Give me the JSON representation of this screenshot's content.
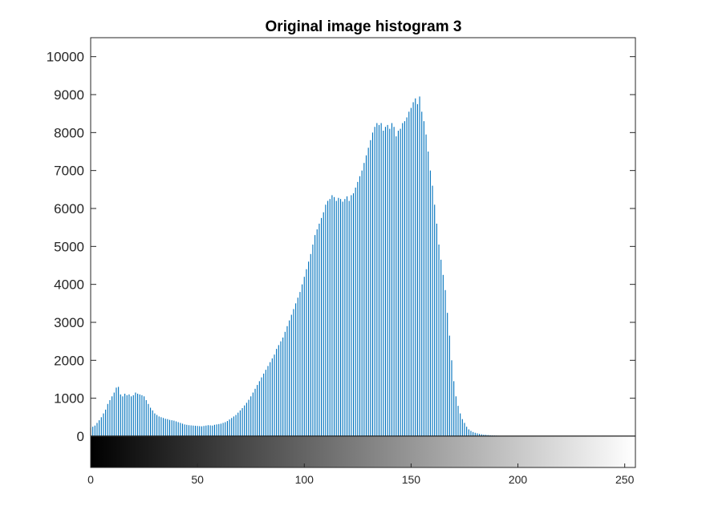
{
  "chart_data": {
    "type": "bar",
    "title": "Original image histogram 3",
    "xlabel": "",
    "ylabel": "",
    "xlim": [
      0,
      255
    ],
    "ylim": [
      0,
      10500
    ],
    "yticks": [
      0,
      1000,
      2000,
      3000,
      4000,
      5000,
      6000,
      7000,
      8000,
      9000,
      10000
    ],
    "xticks": [
      0,
      50,
      100,
      150,
      200,
      250
    ],
    "grid": false,
    "bar_color": "#0072BD",
    "colorbar": {
      "orientation": "horizontal",
      "colormap": "gray",
      "range": [
        0,
        255
      ]
    },
    "x_start": 0,
    "values": [
      220,
      250,
      280,
      350,
      420,
      500,
      600,
      700,
      850,
      950,
      1050,
      1150,
      1280,
      1300,
      1100,
      1050,
      1120,
      1080,
      1100,
      1050,
      1080,
      1150,
      1120,
      1100,
      1080,
      1050,
      950,
      850,
      750,
      680,
      600,
      560,
      520,
      500,
      480,
      460,
      450,
      430,
      420,
      410,
      390,
      370,
      350,
      330,
      310,
      300,
      290,
      285,
      280,
      275,
      270,
      265,
      260,
      270,
      280,
      290,
      285,
      280,
      300,
      310,
      320,
      330,
      350,
      370,
      400,
      440,
      480,
      520,
      560,
      620,
      680,
      740,
      810,
      880,
      960,
      1050,
      1150,
      1250,
      1350,
      1450,
      1550,
      1650,
      1750,
      1850,
      1950,
      2050,
      2150,
      2300,
      2400,
      2500,
      2600,
      2750,
      2900,
      3050,
      3200,
      3350,
      3500,
      3650,
      3800,
      4000,
      4200,
      4400,
      4600,
      4800,
      5050,
      5300,
      5450,
      5600,
      5750,
      5900,
      6100,
      6200,
      6250,
      6350,
      6300,
      6200,
      6280,
      6250,
      6180,
      6250,
      6320,
      6200,
      6350,
      6400,
      6550,
      6700,
      6850,
      7000,
      7200,
      7400,
      7600,
      7800,
      8000,
      8150,
      8250,
      8200,
      8250,
      8050,
      8150,
      8200,
      8100,
      8250,
      8150,
      7900,
      8050,
      8100,
      8250,
      8300,
      8400,
      8550,
      8650,
      8800,
      8900,
      8750,
      8950,
      8550,
      8300,
      7950,
      7500,
      7000,
      6600,
      6100,
      5600,
      5050,
      4650,
      4250,
      3850,
      3250,
      2650,
      2000,
      1450,
      1050,
      800,
      600,
      450,
      350,
      250,
      180,
      140,
      110,
      90,
      75,
      60,
      50,
      40,
      35,
      30,
      25,
      20,
      18,
      15,
      12,
      10,
      8,
      6,
      5,
      4,
      3,
      2,
      2,
      1,
      1,
      1,
      1,
      1,
      1,
      0,
      0,
      0,
      0,
      0,
      0,
      0,
      0,
      0,
      0,
      0,
      0,
      0,
      0,
      0,
      0,
      0,
      0,
      0,
      0,
      0,
      0,
      0,
      0,
      0,
      0,
      0,
      0,
      0,
      0,
      0,
      0,
      0,
      0,
      0,
      0,
      0,
      0,
      0,
      0,
      0,
      0,
      0,
      0,
      0,
      0,
      0,
      0,
      0,
      0,
      0,
      0,
      0,
      0
    ]
  }
}
